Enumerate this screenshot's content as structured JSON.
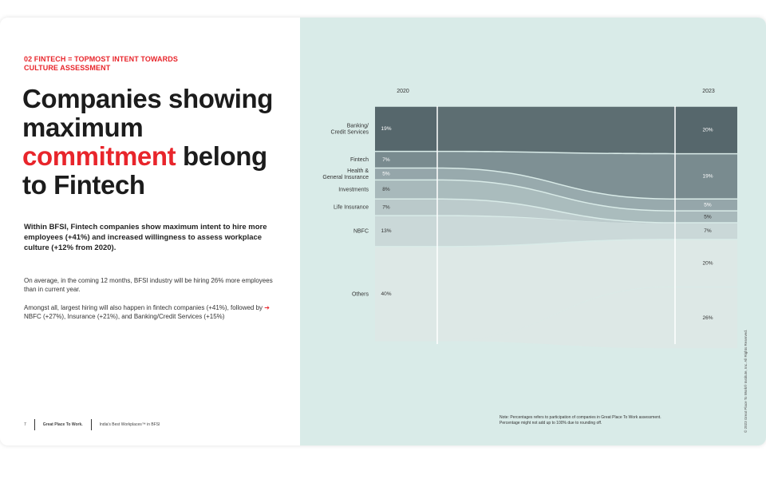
{
  "theme": {
    "accent": "#e8252b",
    "panel_bg": "#d9ebe8",
    "band_colors": [
      "#56676c",
      "#798b8f",
      "#95a6aa",
      "#a8b9bb",
      "#bac9ca",
      "#cad8d8",
      "#dde8e6"
    ]
  },
  "kicker": {
    "line1": "02 FINTECH = TOPMOST INTENT TOWARDS",
    "line2": "CULTURE ASSESSMENT"
  },
  "headline": {
    "part1": "Companies showing maximum",
    "highlight": "commitment",
    "part2": "belong to Fintech"
  },
  "lead_text": "Within BFSI, Fintech companies show maximum intent to hire more employees (+41%) and increased willingness to assess workplace culture (+12% from 2020).",
  "para1": "On average, in the coming 12 months, BFSI industry will be hiring 26% more employees than in current year.",
  "para2": {
    "before": "Amongst all, largest hiring will also happen in fintech companies (+41%), followed by",
    "arrow": "➔",
    "after": "NBFC (+27%), Insurance (+21%), and Banking/Credit Services (+15%)"
  },
  "footer": {
    "page_number": "7",
    "brand": "Great Place To Work.",
    "report": "India's Best Workplaces™ in BFSI"
  },
  "note": {
    "line1": "Note: Percentages refers to participation of companies in Great Place To Work assessment.",
    "line2": "Percentage might not add up to 100% due to rounding off."
  },
  "copyright": "© 2023 Great Place To Work® Institute, Inc. All Rights Reserved.",
  "chart_data": {
    "type": "area",
    "subtype": "alluvial",
    "x": [
      "2020",
      "2023"
    ],
    "series": [
      {
        "name": "Banking/\nCredit Services",
        "values": [
          19,
          20
        ],
        "labels": [
          "19%",
          "20%"
        ]
      },
      {
        "name": "Fintech",
        "values": [
          7,
          19
        ],
        "labels": [
          "7%",
          "19%"
        ]
      },
      {
        "name": "Health &\nGeneral Insurance",
        "values": [
          5,
          5
        ],
        "labels": [
          "5%",
          "5%"
        ]
      },
      {
        "name": "Investments",
        "values": [
          8,
          5
        ],
        "labels": [
          "8%",
          "5%"
        ]
      },
      {
        "name": "Life Insurance",
        "values": [
          7,
          0
        ],
        "labels": [
          "7%",
          ""
        ]
      },
      {
        "name": "NBFC",
        "values": [
          13,
          7
        ],
        "labels": [
          "13%",
          "7%"
        ]
      },
      {
        "name": "Others",
        "values": [
          40,
          20
        ],
        "labels": [
          "40%",
          "20%"
        ]
      }
    ],
    "extra_2023_segment": {
      "value": 26,
      "label": "26%"
    },
    "ylim": [
      0,
      100
    ],
    "grid": false,
    "legend": "left"
  }
}
